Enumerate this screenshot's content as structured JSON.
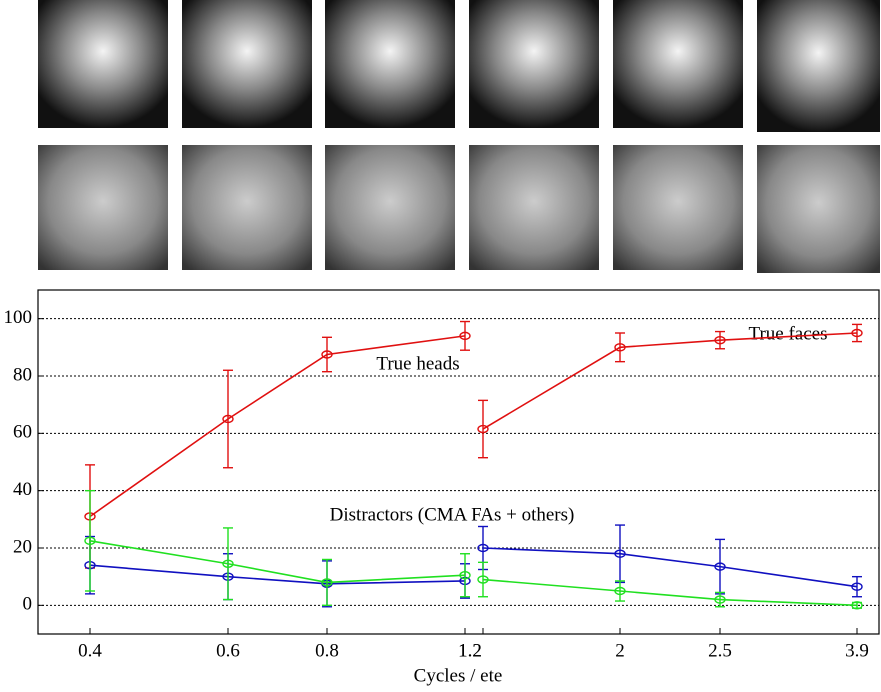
{
  "chart_data": {
    "type": "line",
    "x_label": "Cycles / ete",
    "annotations": [
      "True heads",
      "True faces",
      "Distractors (CMA FAs + others)"
    ],
    "categories": [
      "0.4",
      "0.6",
      "0.8",
      "1.2",
      "1.2",
      "2",
      "2.5",
      "3.9"
    ],
    "ylim": [
      -10,
      110
    ],
    "yticks": [
      0,
      20,
      40,
      60,
      80,
      100
    ],
    "grid": true,
    "series": [
      {
        "name": "True heads",
        "color": "#e01010",
        "values": [
          31,
          65,
          87.5,
          94,
          null,
          null,
          null,
          null
        ],
        "errors": [
          18,
          17,
          6,
          5,
          null,
          null,
          null,
          null
        ]
      },
      {
        "name": "True faces",
        "color": "#e01010",
        "values": [
          null,
          null,
          null,
          null,
          61.5,
          90,
          92.5,
          95
        ],
        "errors": [
          null,
          null,
          null,
          null,
          10,
          5,
          3,
          3
        ]
      },
      {
        "color": "#1010c0",
        "values": [
          14,
          10,
          7.5,
          8.5,
          null,
          null,
          null,
          null
        ],
        "errors": [
          10,
          8,
          8,
          6,
          null,
          null,
          null,
          null
        ]
      },
      {
        "color": "#1010c0",
        "values": [
          null,
          null,
          null,
          null,
          20,
          18,
          13.5,
          6.5
        ],
        "errors": [
          null,
          null,
          null,
          null,
          7.5,
          10,
          9.5,
          3.5
        ]
      },
      {
        "color": "#20e020",
        "values": [
          22.5,
          14.5,
          8,
          10.5,
          null,
          null,
          null,
          null
        ],
        "errors": [
          17.5,
          12.5,
          8,
          7.5,
          null,
          null,
          null,
          null
        ]
      },
      {
        "color": "#20e020",
        "values": [
          null,
          null,
          null,
          null,
          9,
          5,
          2,
          0
        ],
        "errors": [
          null,
          null,
          null,
          null,
          6,
          3.5,
          2.5,
          1
        ]
      }
    ]
  }
}
